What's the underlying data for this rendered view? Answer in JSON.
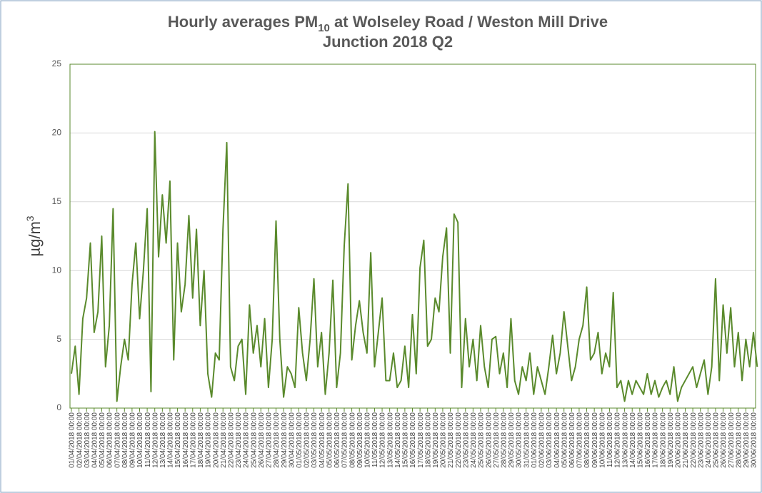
{
  "chart_data": {
    "type": "line",
    "title_parts": [
      "Hourly averages PM",
      "10",
      " at Wolseley Road / Weston Mill Drive",
      "Junction 2018 Q2"
    ],
    "y_label_parts": [
      "µg/m",
      "3"
    ],
    "color": "#5a8a2c",
    "grid": true,
    "ylim": [
      0,
      25
    ],
    "yticks": [
      0,
      5,
      10,
      15,
      20,
      25
    ],
    "x": [
      "01/04/2018 00:00",
      "01/04/2018 12:00",
      "02/04/2018 00:00",
      "02/04/2018 12:00",
      "03/04/2018 00:00",
      "03/04/2018 12:00",
      "04/04/2018 00:00",
      "04/04/2018 12:00",
      "05/04/2018 00:00",
      "05/04/2018 12:00",
      "06/04/2018 00:00",
      "06/04/2018 12:00",
      "07/04/2018 00:00",
      "07/04/2018 12:00",
      "08/04/2018 00:00",
      "08/04/2018 12:00",
      "09/04/2018 00:00",
      "09/04/2018 12:00",
      "10/04/2018 00:00",
      "10/04/2018 12:00",
      "11/04/2018 00:00",
      "11/04/2018 12:00",
      "12/04/2018 00:00",
      "12/04/2018 12:00",
      "13/04/2018 00:00",
      "13/04/2018 12:00",
      "14/04/2018 00:00",
      "14/04/2018 12:00",
      "15/04/2018 00:00",
      "15/04/2018 12:00",
      "16/04/2018 00:00",
      "16/04/2018 12:00",
      "17/04/2018 00:00",
      "17/04/2018 12:00",
      "18/04/2018 00:00",
      "18/04/2018 12:00",
      "19/04/2018 00:00",
      "19/04/2018 12:00",
      "20/04/2018 00:00",
      "20/04/2018 12:00",
      "21/04/2018 00:00",
      "21/04/2018 12:00",
      "22/04/2018 00:00",
      "22/04/2018 12:00",
      "23/04/2018 00:00",
      "23/04/2018 12:00",
      "24/04/2018 00:00",
      "24/04/2018 12:00",
      "25/04/2018 00:00",
      "25/04/2018 12:00",
      "26/04/2018 00:00",
      "26/04/2018 12:00",
      "27/04/2018 00:00",
      "27/04/2018 12:00",
      "28/04/2018 00:00",
      "28/04/2018 12:00",
      "29/04/2018 00:00",
      "29/04/2018 12:00",
      "30/04/2018 00:00",
      "30/04/2018 12:00",
      "01/05/2018 00:00",
      "01/05/2018 12:00",
      "02/05/2018 00:00",
      "02/05/2018 12:00",
      "03/05/2018 00:00",
      "03/05/2018 12:00",
      "04/05/2018 00:00",
      "04/05/2018 12:00",
      "05/05/2018 00:00",
      "05/05/2018 12:00",
      "06/05/2018 00:00",
      "06/05/2018 12:00",
      "07/05/2018 00:00",
      "07/05/2018 12:00",
      "08/05/2018 00:00",
      "08/05/2018 12:00",
      "09/05/2018 00:00",
      "09/05/2018 12:00",
      "10/05/2018 00:00",
      "10/05/2018 12:00",
      "11/05/2018 00:00",
      "11/05/2018 12:00",
      "12/05/2018 00:00",
      "12/05/2018 12:00",
      "13/05/2018 00:00",
      "13/05/2018 12:00",
      "14/05/2018 00:00",
      "14/05/2018 12:00",
      "15/05/2018 00:00",
      "15/05/2018 12:00",
      "16/05/2018 00:00",
      "16/05/2018 12:00",
      "17/05/2018 00:00",
      "17/05/2018 12:00",
      "18/05/2018 00:00",
      "18/05/2018 12:00",
      "19/05/2018 00:00",
      "19/05/2018 12:00",
      "20/05/2018 00:00",
      "20/05/2018 12:00",
      "21/05/2018 00:00",
      "21/05/2018 12:00",
      "22/05/2018 00:00",
      "22/05/2018 12:00",
      "23/05/2018 00:00",
      "23/05/2018 12:00",
      "24/05/2018 00:00",
      "24/05/2018 12:00",
      "25/05/2018 00:00",
      "25/05/2018 12:00",
      "26/05/2018 00:00",
      "26/05/2018 12:00",
      "27/05/2018 00:00",
      "27/05/2018 12:00",
      "28/05/2018 00:00",
      "28/05/2018 12:00",
      "29/05/2018 00:00",
      "29/05/2018 12:00",
      "30/05/2018 00:00",
      "30/05/2018 12:00",
      "31/05/2018 00:00",
      "31/05/2018 12:00",
      "01/06/2018 00:00",
      "01/06/2018 12:00",
      "02/06/2018 00:00",
      "02/06/2018 12:00",
      "03/06/2018 00:00",
      "03/06/2018 12:00",
      "04/06/2018 00:00",
      "04/06/2018 12:00",
      "05/06/2018 00:00",
      "05/06/2018 12:00",
      "06/06/2018 00:00",
      "06/06/2018 12:00",
      "07/06/2018 00:00",
      "07/06/2018 12:00",
      "08/06/2018 00:00",
      "08/06/2018 12:00",
      "09/06/2018 00:00",
      "09/06/2018 12:00",
      "10/06/2018 00:00",
      "10/06/2018 12:00",
      "11/06/2018 00:00",
      "11/06/2018 12:00",
      "12/06/2018 00:00",
      "12/06/2018 12:00",
      "13/06/2018 00:00",
      "13/06/2018 12:00",
      "14/06/2018 00:00",
      "14/06/2018 12:00",
      "15/06/2018 00:00",
      "15/06/2018 12:00",
      "16/06/2018 00:00",
      "16/06/2018 12:00",
      "17/06/2018 00:00",
      "17/06/2018 12:00",
      "18/06/2018 00:00",
      "18/06/2018 12:00",
      "19/06/2018 00:00",
      "19/06/2018 12:00",
      "20/06/2018 00:00",
      "20/06/2018 12:00",
      "21/06/2018 00:00",
      "21/06/2018 12:00",
      "22/06/2018 00:00",
      "22/06/2018 12:00",
      "23/06/2018 00:00",
      "23/06/2018 12:00",
      "24/06/2018 00:00",
      "24/06/2018 12:00",
      "25/06/2018 00:00",
      "25/06/2018 12:00",
      "26/06/2018 00:00",
      "26/06/2018 12:00",
      "27/06/2018 00:00",
      "27/06/2018 12:00",
      "28/06/2018 00:00",
      "28/06/2018 12:00",
      "29/06/2018 00:00",
      "29/06/2018 12:00",
      "30/06/2018 00:00",
      "30/06/2018 12:00"
    ],
    "values": [
      2.5,
      4.5,
      1.0,
      6.5,
      8.0,
      12.0,
      5.5,
      7.0,
      12.5,
      3.0,
      6.0,
      14.5,
      0.5,
      3.0,
      5.0,
      3.5,
      9.0,
      12.0,
      6.5,
      10.0,
      14.5,
      1.2,
      20.1,
      11.0,
      15.5,
      12.0,
      16.5,
      3.5,
      12.0,
      7.0,
      9.0,
      14.0,
      8.0,
      13.0,
      6.0,
      10.0,
      2.5,
      0.8,
      4.0,
      3.5,
      13.0,
      19.3,
      3.0,
      2.0,
      4.5,
      5.0,
      1.0,
      7.5,
      4.0,
      6.0,
      3.0,
      6.5,
      1.5,
      5.0,
      13.6,
      5.0,
      0.8,
      3.0,
      2.5,
      1.5,
      7.3,
      4.0,
      2.0,
      5.0,
      9.4,
      3.0,
      5.5,
      1.0,
      4.0,
      9.3,
      1.5,
      4.0,
      11.8,
      16.3,
      3.5,
      6.0,
      7.8,
      5.5,
      4.0,
      11.3,
      3.0,
      5.5,
      8.0,
      2.0,
      2.0,
      4.0,
      1.5,
      2.0,
      4.5,
      1.5,
      6.8,
      2.5,
      10.2,
      12.2,
      4.5,
      5.0,
      8.0,
      7.0,
      11.0,
      13.1,
      4.0,
      14.1,
      13.5,
      1.5,
      6.5,
      3.0,
      5.0,
      2.0,
      6.0,
      3.0,
      1.5,
      5.0,
      5.2,
      2.5,
      4.0,
      1.5,
      6.5,
      2.0,
      1.0,
      3.0,
      2.0,
      4.0,
      1.0,
      3.0,
      2.0,
      1.0,
      3.0,
      5.3,
      2.5,
      4.0,
      7.0,
      4.5,
      2.0,
      3.0,
      5.0,
      6.0,
      8.8,
      3.5,
      4.0,
      5.5,
      2.5,
      4.0,
      3.0,
      8.4,
      1.5,
      2.0,
      0.5,
      2.0,
      1.0,
      2.0,
      1.5,
      1.0,
      2.5,
      1.0,
      2.0,
      0.8,
      1.5,
      2.0,
      1.0,
      3.0,
      0.5,
      1.5,
      2.0,
      2.5,
      3.0,
      1.5,
      2.5,
      3.5,
      1.0,
      3.0,
      9.4,
      2.0,
      7.5,
      4.0,
      7.3,
      3.0,
      5.5,
      2.0,
      5.0,
      3.0,
      5.5,
      3.0
    ],
    "xticks": [
      "01/04/2018 00:00",
      "02/04/2018 00:00",
      "03/04/2018 00:00",
      "04/04/2018 00:00",
      "05/04/2018 00:00",
      "06/04/2018 00:00",
      "07/04/2018 00:00",
      "08/04/2018 00:00",
      "09/04/2018 00:00",
      "10/04/2018 00:00",
      "11/04/2018 00:00",
      "12/04/2018 00:00",
      "13/04/2018 00:00",
      "14/04/2018 00:00",
      "15/04/2018 00:00",
      "16/04/2018 00:00",
      "17/04/2018 00:00",
      "18/04/2018 00:00",
      "19/04/2018 00:00",
      "20/04/2018 00:00",
      "21/04/2018 00:00",
      "22/04/2018 00:00",
      "23/04/2018 00:00",
      "24/04/2018 00:00",
      "25/04/2018 00:00",
      "26/04/2018 00:00",
      "27/04/2018 00:00",
      "28/04/2018 00:00",
      "29/04/2018 00:00",
      "30/04/2018 00:00",
      "01/05/2018 00:00",
      "02/05/2018 00:00",
      "03/05/2018 00:00",
      "04/05/2018 00:00",
      "05/05/2018 00:00",
      "06/05/2018 00:00",
      "07/05/2018 00:00",
      "08/05/2018 00:00",
      "09/05/2018 00:00",
      "10/05/2018 00:00",
      "11/05/2018 00:00",
      "12/05/2018 00:00",
      "13/05/2018 00:00",
      "14/05/2018 00:00",
      "15/05/2018 00:00",
      "16/05/2018 00:00",
      "17/05/2018 00:00",
      "18/05/2018 00:00",
      "19/05/2018 00:00",
      "20/05/2018 00:00",
      "21/05/2018 00:00",
      "22/05/2018 00:00",
      "23/05/2018 00:00",
      "24/05/2018 00:00",
      "25/05/2018 00:00",
      "26/05/2018 00:00",
      "27/05/2018 00:00",
      "28/05/2018 00:00",
      "29/05/2018 00:00",
      "30/05/2018 00:00",
      "31/05/2018 00:00",
      "01/06/2018 00:00",
      "02/06/2018 00:00",
      "03/06/2018 00:00",
      "04/06/2018 00:00",
      "05/06/2018 00:00",
      "06/06/2018 00:00",
      "07/06/2018 00:00",
      "08/06/2018 00:00",
      "09/06/2018 00:00",
      "10/06/2018 00:00",
      "11/06/2018 00:00",
      "12/06/2018 00:00",
      "13/06/2018 00:00",
      "14/06/2018 00:00",
      "15/06/2018 00:00",
      "16/06/2018 00:00",
      "17/06/2018 00:00",
      "18/06/2018 00:00",
      "19/06/2018 00:00",
      "20/06/2018 00:00",
      "21/06/2018 00:00",
      "22/06/2018 00:00",
      "23/06/2018 00:00",
      "24/06/2018 00:00",
      "25/06/2018 00:00",
      "26/06/2018 00:00",
      "27/06/2018 00:00",
      "28/06/2018 00:00",
      "29/06/2018 00:00",
      "30/06/2018 00:00"
    ]
  }
}
